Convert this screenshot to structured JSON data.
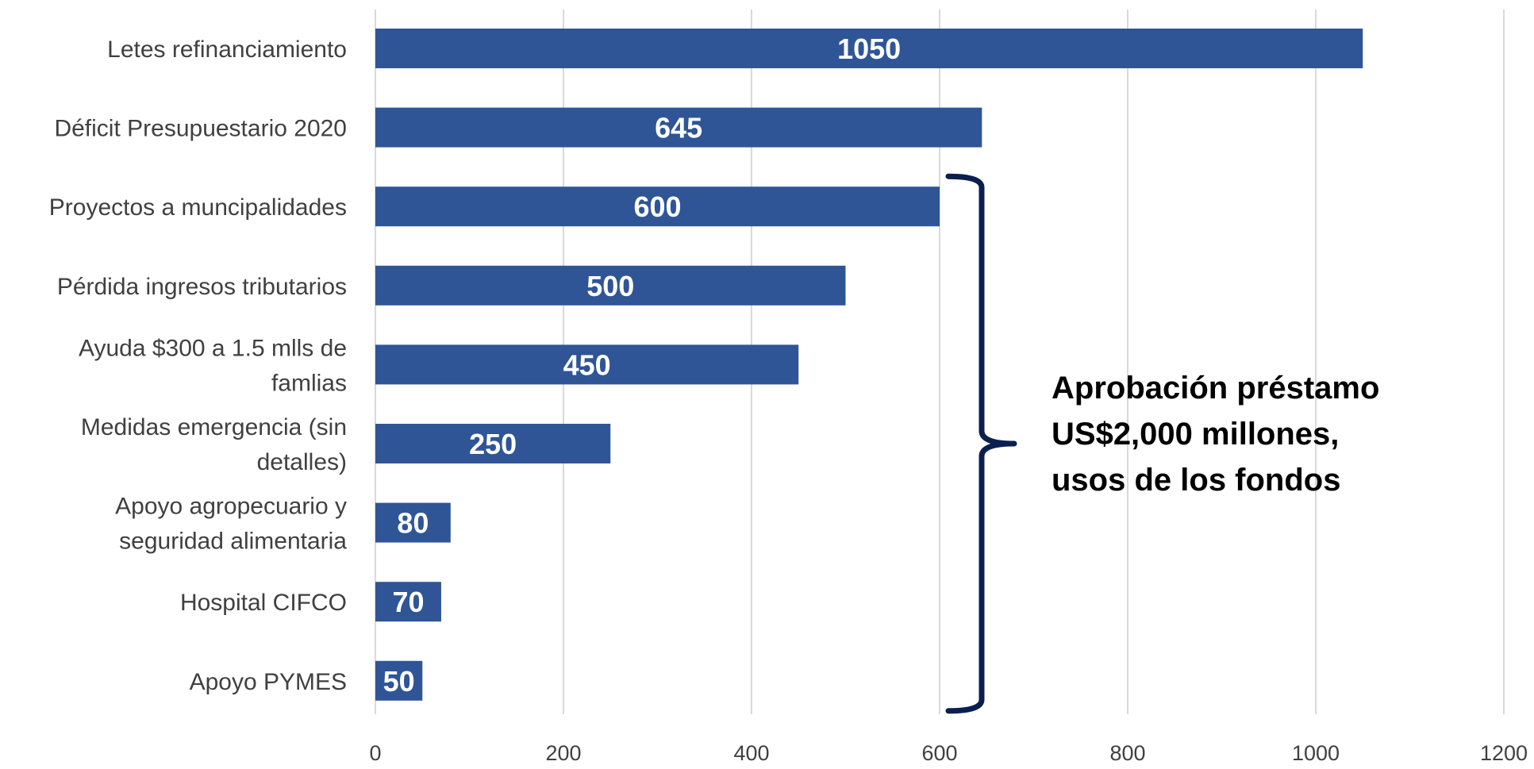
{
  "chart_data": {
    "type": "bar",
    "orientation": "horizontal",
    "categories": [
      "Letes refinanciamiento",
      "Déficit Presupuestario 2020",
      "Proyectos a muncipalidades",
      "Pérdida ingresos tributarios",
      "Ayuda $300 a 1.5 mlls de famlias",
      "Medidas emergencia (sin detalles)",
      "Apoyo agropecuario y seguridad alimentaria",
      "Hospital CIFCO",
      "Apoyo PYMES"
    ],
    "category_lines": [
      [
        "Letes refinanciamiento"
      ],
      [
        "Déficit Presupuestario 2020"
      ],
      [
        "Proyectos a muncipalidades"
      ],
      [
        "Pérdida ingresos tributarios"
      ],
      [
        "Ayuda $300 a 1.5 mlls de",
        "famlias"
      ],
      [
        "Medidas emergencia (sin",
        "detalles)"
      ],
      [
        "Apoyo agropecuario y",
        "seguridad alimentaria"
      ],
      [
        "Hospital CIFCO"
      ],
      [
        "Apoyo PYMES"
      ]
    ],
    "values": [
      1050,
      645,
      600,
      500,
      450,
      250,
      80,
      70,
      50
    ],
    "data_labels": [
      "1050",
      "645",
      "600",
      "500",
      "450",
      "250",
      "80",
      "70",
      "50"
    ],
    "xlim": [
      0,
      1200
    ],
    "xticks": [
      0,
      200,
      400,
      600,
      800,
      1000,
      1200
    ],
    "xtick_labels": [
      "0",
      "200",
      "400",
      "600",
      "800",
      "1000",
      "1200"
    ],
    "grid": true,
    "bar_color": "#2F5597",
    "annotation": {
      "lines": [
        "Aprobación préstamo",
        "US$2,000 millones,",
        "usos de los fondos"
      ],
      "bracket_color": "#0B1F4F",
      "covers_categories": [
        "Proyectos a muncipalidades",
        "Apoyo PYMES"
      ]
    }
  }
}
